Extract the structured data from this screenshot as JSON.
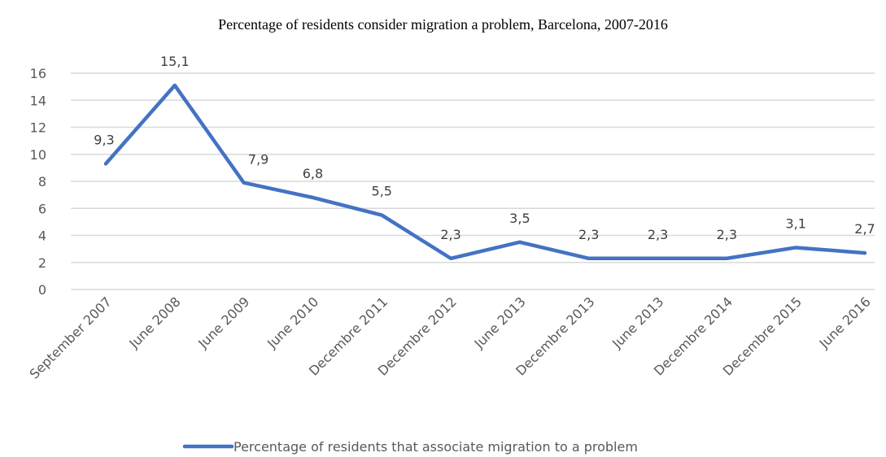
{
  "chart_data": {
    "type": "line",
    "title": "Percentage of residents consider migration a problem, Barcelona, 2007-2016",
    "xlabel": "",
    "ylabel": "",
    "categories": [
      "September 2007",
      "June 2008",
      "June 2009",
      "June 2010",
      "Decembre 2011",
      "Decembre 2012",
      "June 2013",
      "Decembre 2013",
      "June 2013",
      "Decembre 2014",
      "Decembre 2015",
      "June 2016"
    ],
    "series": [
      {
        "name": "Percentage of residents that associate migration to a problem",
        "values": [
          9.3,
          15.1,
          7.9,
          6.8,
          5.5,
          2.3,
          3.5,
          2.3,
          2.3,
          2.3,
          3.1,
          2.7
        ],
        "labels": [
          "9,3",
          "15,1",
          "7,9",
          "6,8",
          "5,5",
          "2,3",
          "3,5",
          "2,3",
          "2,3",
          "2,3",
          "3,1",
          "2,7"
        ],
        "color": "#4472c4"
      }
    ],
    "ylim": [
      0,
      16
    ],
    "yticks": [
      0,
      2,
      4,
      6,
      8,
      10,
      12,
      14,
      16
    ],
    "grid": true,
    "legend_position": "bottom",
    "gridline_color": "#d9d9d9"
  }
}
